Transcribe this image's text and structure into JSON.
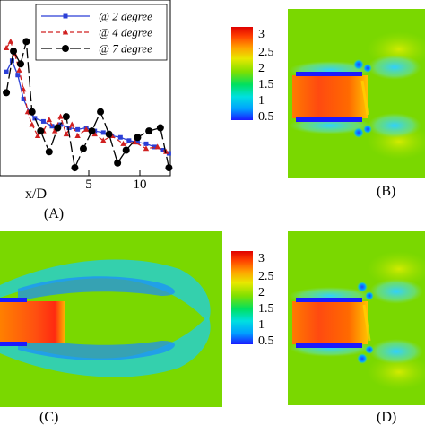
{
  "chart_data": {
    "type": "line",
    "xlabel": "x/D",
    "x_ticks": [
      "5",
      "10"
    ],
    "xlim": [
      0,
      11.5
    ],
    "ylim": [
      0,
      1
    ],
    "grid": false,
    "legend_position": "top-right",
    "series": [
      {
        "name": "@ 2 degree",
        "color": "#2b3fd6",
        "marker": "square",
        "dash": "solid",
        "x": [
          0.2,
          0.6,
          1.0,
          1.4,
          1.8,
          2.2,
          2.8,
          3.4,
          4.0,
          4.6,
          5.2,
          5.8,
          6.4,
          7.0,
          7.6,
          8.2,
          8.8,
          9.4,
          10.0,
          10.6,
          11.2,
          11.6
        ],
        "y": [
          0.55,
          0.62,
          0.53,
          0.38,
          0.3,
          0.26,
          0.24,
          0.21,
          0.22,
          0.2,
          0.19,
          0.2,
          0.18,
          0.17,
          0.15,
          0.14,
          0.12,
          0.11,
          0.1,
          0.08,
          0.06,
          0.04
        ]
      },
      {
        "name": "@ 4 degree",
        "color": "#d02020",
        "marker": "triangle",
        "dash": "dashed",
        "x": [
          0.2,
          0.5,
          0.8,
          1.1,
          1.4,
          1.7,
          2.0,
          2.4,
          2.8,
          3.2,
          3.6,
          4.0,
          4.4,
          4.8,
          5.2,
          5.8,
          6.4,
          7.0,
          7.6,
          8.4,
          9.2,
          10.0,
          10.8,
          11.4
        ],
        "y": [
          0.7,
          0.74,
          0.66,
          0.56,
          0.44,
          0.3,
          0.22,
          0.15,
          0.18,
          0.25,
          0.18,
          0.27,
          0.16,
          0.22,
          0.15,
          0.19,
          0.16,
          0.12,
          0.15,
          0.1,
          0.11,
          0.07,
          0.08,
          0.05
        ]
      },
      {
        "name": "@ 7 degree",
        "color": "#000000",
        "marker": "circle",
        "dash": "longdash",
        "x": [
          0.2,
          0.7,
          1.2,
          1.6,
          2.0,
          2.6,
          3.2,
          3.8,
          4.4,
          5.0,
          5.6,
          6.2,
          6.8,
          7.4,
          8.0,
          8.6,
          9.4,
          10.2,
          11.0,
          11.6
        ],
        "y": [
          0.42,
          0.68,
          0.6,
          0.74,
          0.3,
          0.18,
          0.05,
          0.2,
          0.27,
          -0.05,
          0.07,
          0.18,
          0.3,
          0.16,
          -0.02,
          0.06,
          0.14,
          0.18,
          0.2,
          -0.05
        ]
      }
    ]
  },
  "panels": {
    "A": {
      "caption": "(A)"
    },
    "B": {
      "caption": "(B)"
    },
    "C": {
      "caption": "(C)"
    },
    "D": {
      "caption": "(D)"
    }
  },
  "colorbar": {
    "ticks": [
      "3",
      "2.5",
      "2",
      "1.5",
      "1",
      "0.5"
    ],
    "range": [
      0.3,
      3.3
    ],
    "colors": [
      "#1a1aff",
      "#00a0ff",
      "#00e0e0",
      "#00e060",
      "#80e000",
      "#e8e800",
      "#ffa000",
      "#ff4000",
      "#e00000"
    ]
  }
}
